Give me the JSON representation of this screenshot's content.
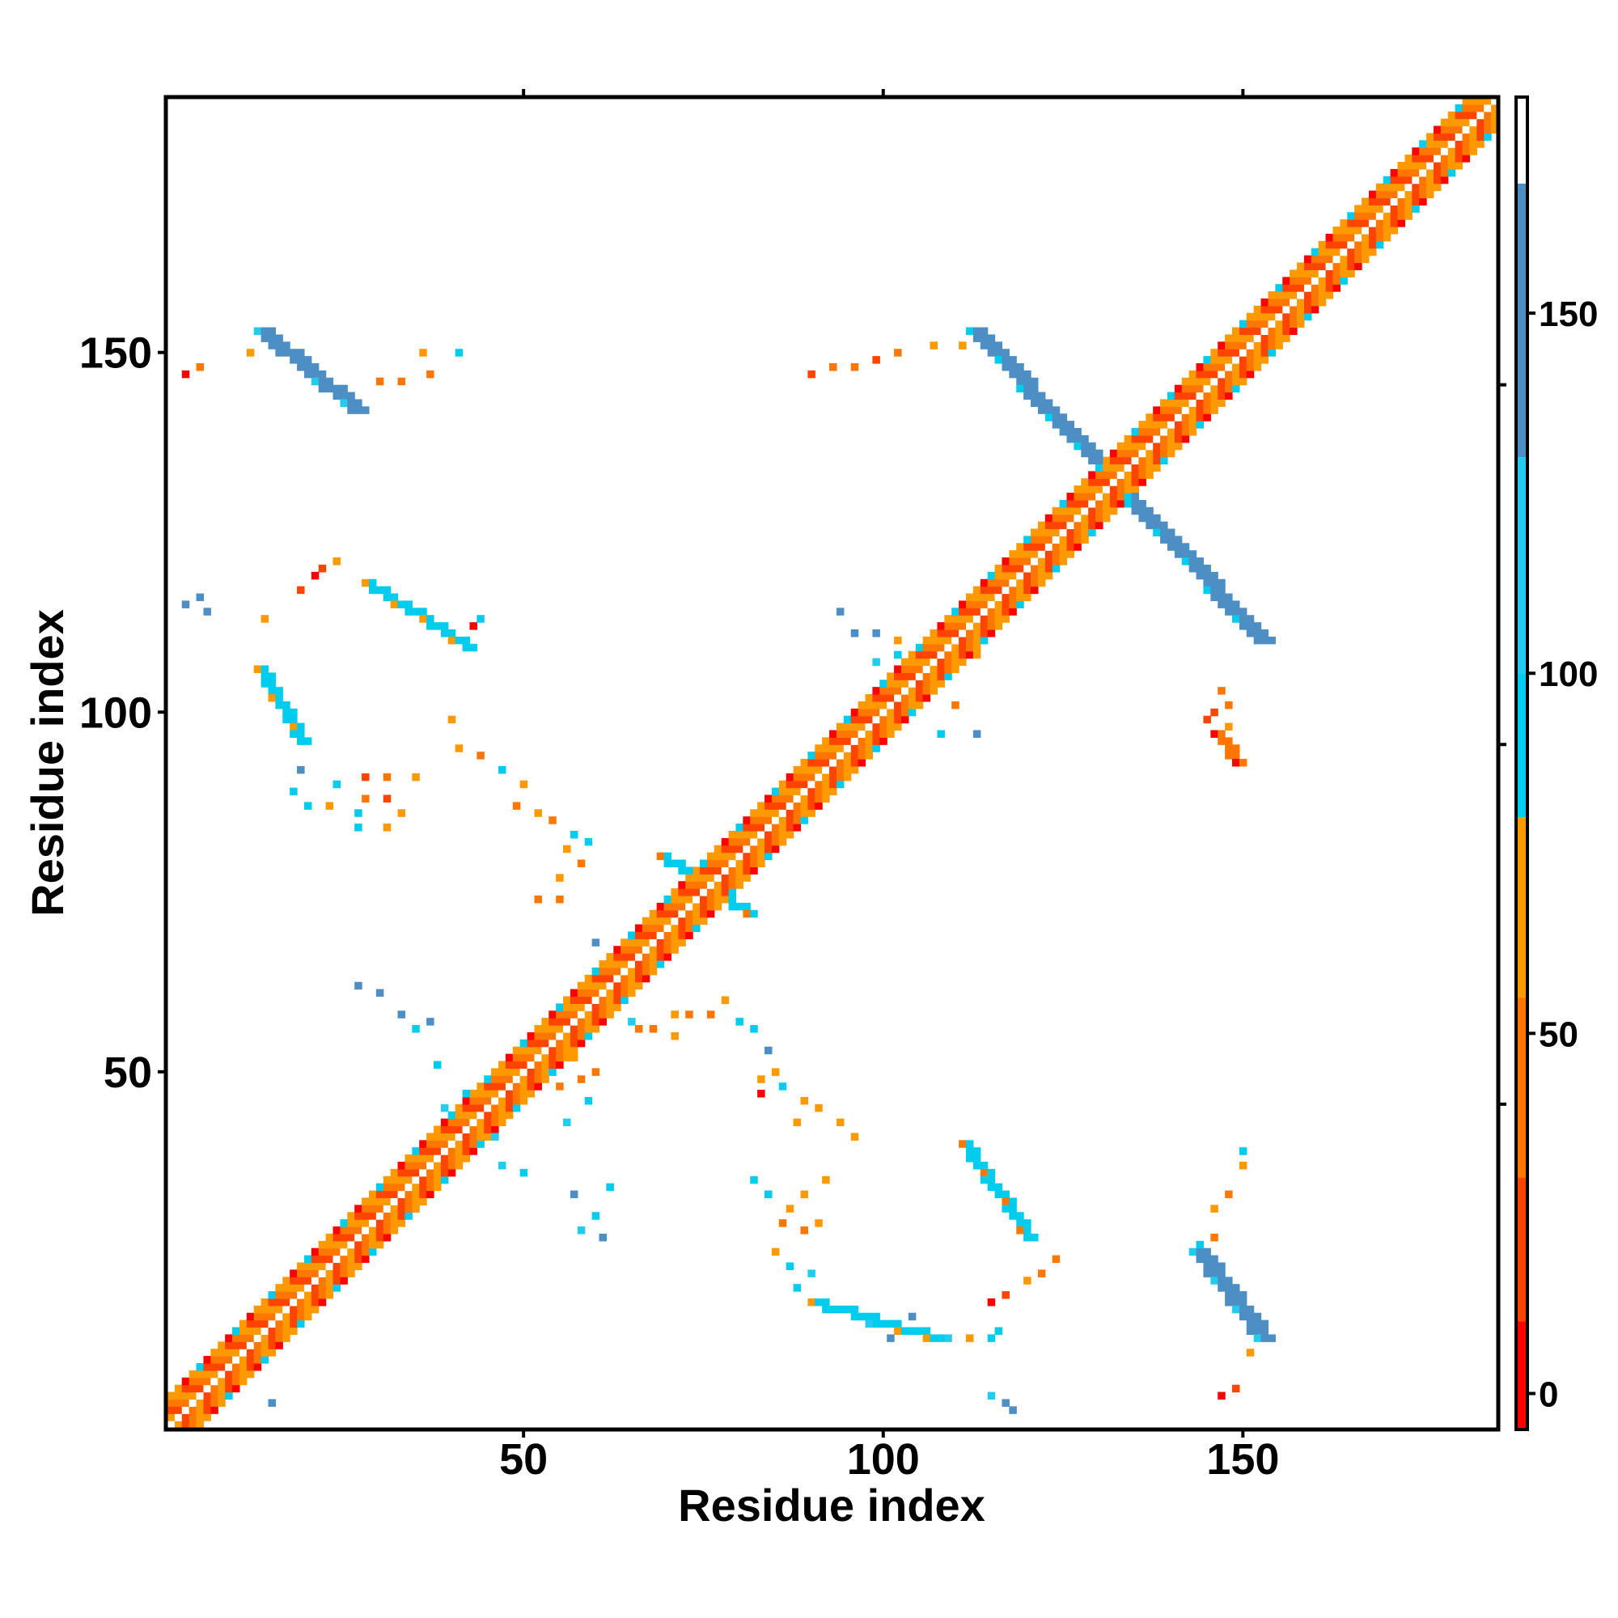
{
  "chart_data": {
    "type": "heatmap",
    "title": "",
    "xlabel": "Residue index",
    "ylabel": "Residue index",
    "xlim": [
      1,
      185
    ],
    "ylim": [
      1,
      185
    ],
    "x_ticks": [
      50,
      100,
      150
    ],
    "y_ticks": [
      50,
      100,
      150
    ],
    "x_tick_labels": [
      "50",
      "100",
      "150"
    ],
    "y_tick_labels": [
      "50",
      "100",
      "150"
    ],
    "grid": false,
    "legend": "colorbar-right",
    "colorbar": {
      "range": [
        -5,
        180
      ],
      "ticks": [
        0,
        50,
        100,
        150
      ],
      "tick_labels": [
        "0",
        "50",
        "100",
        "150"
      ],
      "bands": [
        {
          "from": -5,
          "to": 10,
          "color": "#ff0000"
        },
        {
          "from": 10,
          "to": 30,
          "color": "#ff4400"
        },
        {
          "from": 30,
          "to": 55,
          "color": "#ff7700"
        },
        {
          "from": 55,
          "to": 80,
          "color": "#ff9900"
        },
        {
          "from": 80,
          "to": 100,
          "color": "#00ccee"
        },
        {
          "from": 100,
          "to": 130,
          "color": "#22ccee"
        },
        {
          "from": 130,
          "to": 168,
          "color": "#4d8fc4"
        },
        {
          "from": 168,
          "to": 180,
          "color": "#ffffff"
        }
      ]
    },
    "segments": [
      {
        "name": "diagonal",
        "from": [
          1,
          1
        ],
        "to": [
          185,
          185
        ],
        "values": [
          25,
          40,
          60
        ],
        "value": 0,
        "offsets": [
          -3,
          3
        ],
        "width": 5
      },
      {
        "name": "hairpin-110-150",
        "from": [
          112,
          153
        ],
        "to": [
          152,
          110
        ],
        "value": 135,
        "width": 3
      },
      {
        "name": "hairpin-13-26",
        "from": [
          13,
          153
        ],
        "to": [
          26,
          142
        ],
        "value": 140,
        "width": 3
      },
      {
        "name": "hairpin-143-150-lower",
        "from": [
          143,
          25
        ],
        "to": [
          152,
          13
        ],
        "value": 140,
        "width": 3
      },
      {
        "name": "contact-113-39",
        "from": [
          111,
          40
        ],
        "to": [
          120,
          27
        ],
        "value": 90,
        "width": 2
      },
      {
        "name": "contact-37-122",
        "from": [
          28,
          118
        ],
        "to": [
          42,
          109
        ],
        "value": 95,
        "width": 2
      },
      {
        "name": "contact-13-100",
        "from": [
          13,
          106
        ],
        "to": [
          19,
          96
        ],
        "value": 95,
        "width": 2
      },
      {
        "name": "contact-72-78",
        "from": [
          69,
          80
        ],
        "to": [
          81,
          72
        ],
        "value": 90,
        "width": 2
      },
      {
        "name": "contact-92-14",
        "from": [
          90,
          18
        ],
        "to": [
          107,
          13
        ],
        "value": 95,
        "width": 2
      },
      {
        "name": "contact-147-95",
        "from": [
          146,
          97
        ],
        "to": [
          149,
          93
        ],
        "value": 40,
        "width": 2
      }
    ],
    "scatter_cells": [
      [
        21,
        119,
        5
      ],
      [
        22,
        120,
        10
      ],
      [
        19,
        117,
        20
      ],
      [
        14,
        113,
        60
      ],
      [
        24,
        121,
        60
      ],
      [
        3,
        147,
        5
      ],
      [
        5,
        148,
        35
      ],
      [
        12,
        150,
        55
      ],
      [
        36,
        150,
        60
      ],
      [
        41,
        150,
        95
      ],
      [
        37,
        147,
        35
      ],
      [
        30,
        146,
        50
      ],
      [
        33,
        146,
        40
      ],
      [
        90,
        147,
        25
      ],
      [
        93,
        148,
        35
      ],
      [
        96,
        148,
        45
      ],
      [
        99,
        149,
        15
      ],
      [
        102,
        150,
        40
      ],
      [
        107,
        151,
        60
      ],
      [
        111,
        151,
        55
      ],
      [
        3,
        115,
        140
      ],
      [
        5,
        116,
        140
      ],
      [
        6,
        114,
        130
      ],
      [
        43,
        112,
        5
      ],
      [
        44,
        113,
        85
      ],
      [
        40,
        99,
        65
      ],
      [
        41,
        95,
        55
      ],
      [
        44,
        94,
        45
      ],
      [
        47,
        92,
        85
      ],
      [
        50,
        90,
        70
      ],
      [
        49,
        87,
        45
      ],
      [
        52,
        86,
        55
      ],
      [
        54,
        85,
        40
      ],
      [
        57,
        83,
        90
      ],
      [
        59,
        82,
        95
      ],
      [
        56,
        81,
        75
      ],
      [
        58,
        79,
        30
      ],
      [
        55,
        77,
        60
      ],
      [
        52,
        74,
        50
      ],
      [
        55,
        74,
        40
      ],
      [
        28,
        91,
        25
      ],
      [
        31,
        91,
        45
      ],
      [
        35,
        91,
        55
      ],
      [
        28,
        88,
        35
      ],
      [
        31,
        88,
        25
      ],
      [
        33,
        86,
        60
      ],
      [
        27,
        86,
        90
      ],
      [
        23,
        87,
        70
      ],
      [
        20,
        87,
        90
      ],
      [
        18,
        89,
        95
      ],
      [
        24,
        90,
        95
      ],
      [
        27,
        84,
        90
      ],
      [
        31,
        84,
        60
      ],
      [
        19,
        92,
        130
      ],
      [
        94,
        114,
        140
      ],
      [
        96,
        111,
        150
      ],
      [
        99,
        111,
        140
      ],
      [
        102,
        108,
        95
      ],
      [
        106,
        104,
        90
      ],
      [
        108,
        97,
        85
      ],
      [
        110,
        101,
        50
      ],
      [
        113,
        97,
        150
      ],
      [
        147,
        103,
        50
      ],
      [
        148,
        101,
        45
      ],
      [
        146,
        100,
        10
      ],
      [
        145,
        99,
        20
      ],
      [
        148,
        98,
        55
      ],
      [
        27,
        62,
        140
      ],
      [
        30,
        61,
        130
      ],
      [
        33,
        58,
        130
      ],
      [
        35,
        56,
        95
      ],
      [
        37,
        57,
        130
      ],
      [
        38,
        51,
        85
      ],
      [
        42,
        47,
        95
      ],
      [
        39,
        45,
        100
      ],
      [
        44,
        43,
        110
      ],
      [
        46,
        41,
        120
      ],
      [
        43,
        41,
        100
      ],
      [
        47,
        37,
        110
      ],
      [
        40,
        37,
        95
      ],
      [
        50,
        36,
        90
      ],
      [
        56,
        43,
        100
      ],
      [
        55,
        48,
        40
      ],
      [
        57,
        52,
        60
      ],
      [
        58,
        49,
        35
      ],
      [
        60,
        50,
        50
      ],
      [
        59,
        46,
        95
      ],
      [
        62,
        34,
        90
      ],
      [
        60,
        30,
        95
      ],
      [
        61,
        27,
        130
      ],
      [
        58,
        28,
        120
      ],
      [
        57,
        33,
        130
      ],
      [
        60,
        68,
        130
      ],
      [
        63,
        64,
        130
      ],
      [
        65,
        57,
        110
      ],
      [
        66,
        56,
        40
      ],
      [
        68,
        56,
        50
      ],
      [
        71,
        58,
        55
      ],
      [
        73,
        58,
        35
      ],
      [
        71,
        55,
        60
      ],
      [
        76,
        58,
        40
      ],
      [
        78,
        60,
        55
      ],
      [
        80,
        57,
        95
      ],
      [
        82,
        56,
        95
      ],
      [
        84,
        53,
        130
      ],
      [
        85,
        50,
        60
      ],
      [
        83,
        49,
        55
      ],
      [
        86,
        48,
        95
      ],
      [
        89,
        46,
        55
      ],
      [
        88,
        43,
        55
      ],
      [
        91,
        45,
        60
      ],
      [
        94,
        43,
        55
      ],
      [
        96,
        41,
        60
      ],
      [
        83,
        47,
        5
      ],
      [
        82,
        35,
        90
      ],
      [
        84,
        33,
        85
      ],
      [
        87,
        31,
        55
      ],
      [
        86,
        29,
        40
      ],
      [
        89,
        33,
        55
      ],
      [
        89,
        28,
        50
      ],
      [
        91,
        29,
        60
      ],
      [
        85,
        25,
        55
      ],
      [
        87,
        23,
        95
      ],
      [
        90,
        22,
        100
      ],
      [
        92,
        35,
        60
      ],
      [
        88,
        20,
        90
      ],
      [
        115,
        18,
        5
      ],
      [
        117,
        19,
        15
      ],
      [
        120,
        21,
        55
      ],
      [
        122,
        22,
        45
      ],
      [
        124,
        24,
        50
      ],
      [
        112,
        13,
        55
      ],
      [
        115,
        13,
        85
      ],
      [
        116,
        14,
        95
      ],
      [
        109,
        13,
        110
      ],
      [
        106,
        14,
        120
      ],
      [
        104,
        16,
        130
      ],
      [
        101,
        13,
        140
      ],
      [
        98,
        15,
        120
      ],
      [
        115,
        5,
        120
      ],
      [
        117,
        4,
        130
      ],
      [
        118,
        3,
        140
      ],
      [
        147,
        5,
        5
      ],
      [
        149,
        6,
        15
      ],
      [
        151,
        11,
        60
      ],
      [
        146,
        27,
        40
      ],
      [
        146,
        31,
        55
      ],
      [
        148,
        33,
        45
      ],
      [
        150,
        37,
        60
      ],
      [
        150,
        39,
        95
      ],
      [
        144,
        26,
        90
      ],
      [
        12,
        13,
        130
      ],
      [
        15,
        4,
        140
      ],
      [
        134,
        137,
        110
      ],
      [
        130,
        133,
        40
      ],
      [
        135,
        130,
        90
      ],
      [
        113,
        108,
        60
      ],
      [
        109,
        111,
        85
      ],
      [
        102,
        110,
        60
      ],
      [
        105,
        107,
        95
      ],
      [
        99,
        107,
        110
      ]
    ]
  }
}
